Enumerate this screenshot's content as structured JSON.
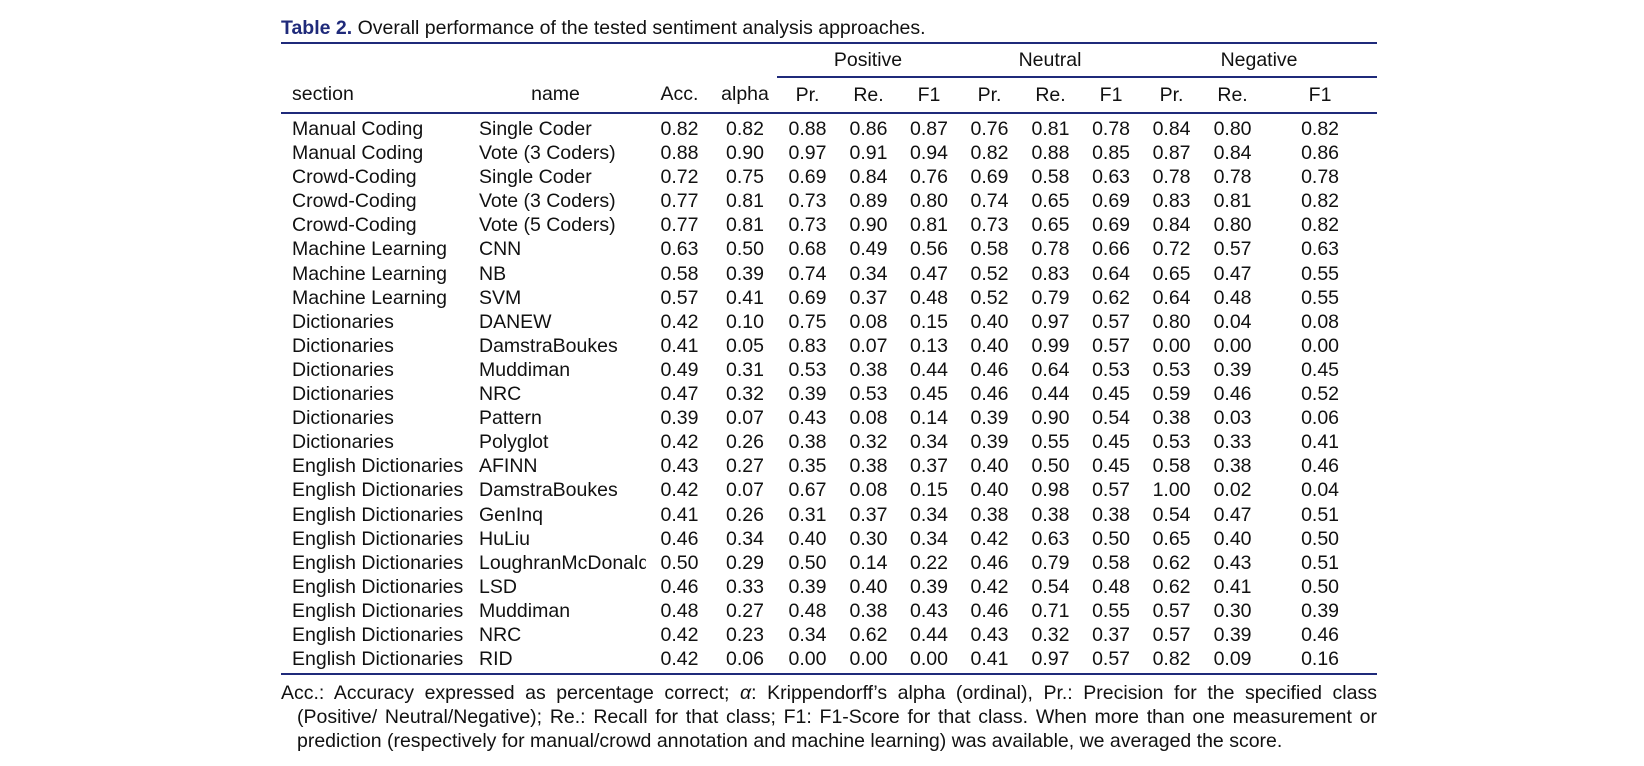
{
  "caption": {
    "label": "Table 2.",
    "text": "Overall performance of the tested sentiment analysis approaches."
  },
  "groups": {
    "positive": "Positive",
    "neutral": "Neutral",
    "negative": "Negative"
  },
  "columns": [
    "section",
    "name",
    "Acc.",
    "alpha",
    "Pr.",
    "Re.",
    "F1",
    "Pr.",
    "Re.",
    "F1",
    "Pr.",
    "Re.",
    "F1"
  ],
  "rows": [
    [
      "Manual Coding",
      "Single Coder",
      "0.82",
      "0.82",
      "0.88",
      "0.86",
      "0.87",
      "0.76",
      "0.81",
      "0.78",
      "0.84",
      "0.80",
      "0.82"
    ],
    [
      "Manual Coding",
      "Vote (3 Coders)",
      "0.88",
      "0.90",
      "0.97",
      "0.91",
      "0.94",
      "0.82",
      "0.88",
      "0.85",
      "0.87",
      "0.84",
      "0.86"
    ],
    [
      "Crowd-Coding",
      "Single Coder",
      "0.72",
      "0.75",
      "0.69",
      "0.84",
      "0.76",
      "0.69",
      "0.58",
      "0.63",
      "0.78",
      "0.78",
      "0.78"
    ],
    [
      "Crowd-Coding",
      "Vote (3 Coders)",
      "0.77",
      "0.81",
      "0.73",
      "0.89",
      "0.80",
      "0.74",
      "0.65",
      "0.69",
      "0.83",
      "0.81",
      "0.82"
    ],
    [
      "Crowd-Coding",
      "Vote (5 Coders)",
      "0.77",
      "0.81",
      "0.73",
      "0.90",
      "0.81",
      "0.73",
      "0.65",
      "0.69",
      "0.84",
      "0.80",
      "0.82"
    ],
    [
      "Machine Learning",
      "CNN",
      "0.63",
      "0.50",
      "0.68",
      "0.49",
      "0.56",
      "0.58",
      "0.78",
      "0.66",
      "0.72",
      "0.57",
      "0.63"
    ],
    [
      "Machine Learning",
      "NB",
      "0.58",
      "0.39",
      "0.74",
      "0.34",
      "0.47",
      "0.52",
      "0.83",
      "0.64",
      "0.65",
      "0.47",
      "0.55"
    ],
    [
      "Machine Learning",
      "SVM",
      "0.57",
      "0.41",
      "0.69",
      "0.37",
      "0.48",
      "0.52",
      "0.79",
      "0.62",
      "0.64",
      "0.48",
      "0.55"
    ],
    [
      "Dictionaries",
      "DANEW",
      "0.42",
      "0.10",
      "0.75",
      "0.08",
      "0.15",
      "0.40",
      "0.97",
      "0.57",
      "0.80",
      "0.04",
      "0.08"
    ],
    [
      "Dictionaries",
      "DamstraBoukes",
      "0.41",
      "0.05",
      "0.83",
      "0.07",
      "0.13",
      "0.40",
      "0.99",
      "0.57",
      "0.00",
      "0.00",
      "0.00"
    ],
    [
      "Dictionaries",
      "Muddiman",
      "0.49",
      "0.31",
      "0.53",
      "0.38",
      "0.44",
      "0.46",
      "0.64",
      "0.53",
      "0.53",
      "0.39",
      "0.45"
    ],
    [
      "Dictionaries",
      "NRC",
      "0.47",
      "0.32",
      "0.39",
      "0.53",
      "0.45",
      "0.46",
      "0.44",
      "0.45",
      "0.59",
      "0.46",
      "0.52"
    ],
    [
      "Dictionaries",
      "Pattern",
      "0.39",
      "0.07",
      "0.43",
      "0.08",
      "0.14",
      "0.39",
      "0.90",
      "0.54",
      "0.38",
      "0.03",
      "0.06"
    ],
    [
      "Dictionaries",
      "Polyglot",
      "0.42",
      "0.26",
      "0.38",
      "0.32",
      "0.34",
      "0.39",
      "0.55",
      "0.45",
      "0.53",
      "0.33",
      "0.41"
    ],
    [
      "English Dictionaries",
      "AFINN",
      "0.43",
      "0.27",
      "0.35",
      "0.38",
      "0.37",
      "0.40",
      "0.50",
      "0.45",
      "0.58",
      "0.38",
      "0.46"
    ],
    [
      "English Dictionaries",
      "DamstraBoukes",
      "0.42",
      "0.07",
      "0.67",
      "0.08",
      "0.15",
      "0.40",
      "0.98",
      "0.57",
      "1.00",
      "0.02",
      "0.04"
    ],
    [
      "English Dictionaries",
      "GenInq",
      "0.41",
      "0.26",
      "0.31",
      "0.37",
      "0.34",
      "0.38",
      "0.38",
      "0.38",
      "0.54",
      "0.47",
      "0.51"
    ],
    [
      "English Dictionaries",
      "HuLiu",
      "0.46",
      "0.34",
      "0.40",
      "0.30",
      "0.34",
      "0.42",
      "0.63",
      "0.50",
      "0.65",
      "0.40",
      "0.50"
    ],
    [
      "English Dictionaries",
      "LoughranMcDonald",
      "0.50",
      "0.29",
      "0.50",
      "0.14",
      "0.22",
      "0.46",
      "0.79",
      "0.58",
      "0.62",
      "0.43",
      "0.51"
    ],
    [
      "English Dictionaries",
      "LSD",
      "0.46",
      "0.33",
      "0.39",
      "0.40",
      "0.39",
      "0.42",
      "0.54",
      "0.48",
      "0.62",
      "0.41",
      "0.50"
    ],
    [
      "English Dictionaries",
      "Muddiman",
      "0.48",
      "0.27",
      "0.48",
      "0.38",
      "0.43",
      "0.46",
      "0.71",
      "0.55",
      "0.57",
      "0.30",
      "0.39"
    ],
    [
      "English Dictionaries",
      "NRC",
      "0.42",
      "0.23",
      "0.34",
      "0.62",
      "0.44",
      "0.43",
      "0.32",
      "0.37",
      "0.57",
      "0.39",
      "0.46"
    ],
    [
      "English Dictionaries",
      "RID",
      "0.42",
      "0.06",
      "0.00",
      "0.00",
      "0.00",
      "0.41",
      "0.97",
      "0.57",
      "0.82",
      "0.09",
      "0.16"
    ]
  ],
  "notes": {
    "acc": "Acc.: Accuracy expressed as percentage correct; ",
    "alpha_symbol": "α",
    "rest": ": Krippendorff’s alpha (ordinal), Pr.: Precision for the specified class (Positive/ Neutral/Negative); Re.: Recall for that class; F1: F1-Score for that class. When more than one measurement or prediction (respectively for manual/crowd annotation and machine learning) was available, we averaged the score."
  },
  "colors": {
    "accent": "#1f2a7a",
    "text": "#111111"
  }
}
